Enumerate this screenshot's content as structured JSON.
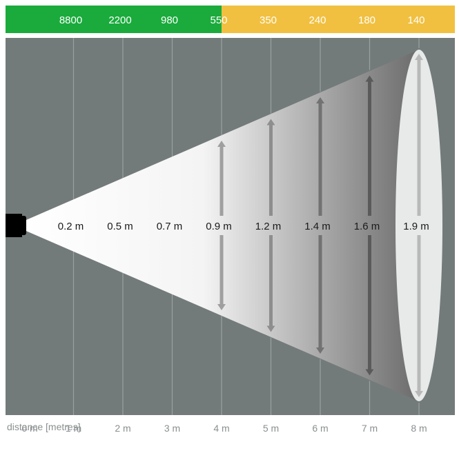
{
  "colors": {
    "lux_high": "#1aab3c",
    "lux_low": "#f1c040",
    "background": "#727b7a",
    "grid": "#9aa2a1",
    "beam_start": "#ffffff",
    "beam_end": "#6e6e6e",
    "lamp": "#000000"
  },
  "chart_data": {
    "type": "beam-diagram",
    "xlabel": "distance [metres]",
    "x": [
      0,
      1,
      2,
      3,
      4,
      5,
      6,
      7,
      8
    ],
    "x_tick_labels": [
      "0 m",
      "1 m",
      "2 m",
      "3 m",
      "4 m",
      "5 m",
      "6 m",
      "7 m",
      "8 m"
    ],
    "lux_values": [
      8800,
      2200,
      980,
      550,
      350,
      240,
      180,
      140
    ],
    "lux_distances": [
      1,
      2,
      3,
      4,
      5,
      6,
      7,
      8
    ],
    "lux_colors": [
      "high",
      "high",
      "high",
      "low",
      "low",
      "low",
      "low",
      "low"
    ],
    "beam_width_labels": [
      "0.2 m",
      "0.5 m",
      "0.7 m",
      "0.9 m",
      "1.2 m",
      "1.4 m",
      "1.6 m",
      "1.9 m"
    ],
    "beam_widths_m": [
      0.2,
      0.5,
      0.7,
      0.9,
      1.2,
      1.4,
      1.6,
      1.9
    ],
    "beam_distances": [
      1,
      2,
      3,
      4,
      5,
      6,
      7,
      8
    ]
  }
}
